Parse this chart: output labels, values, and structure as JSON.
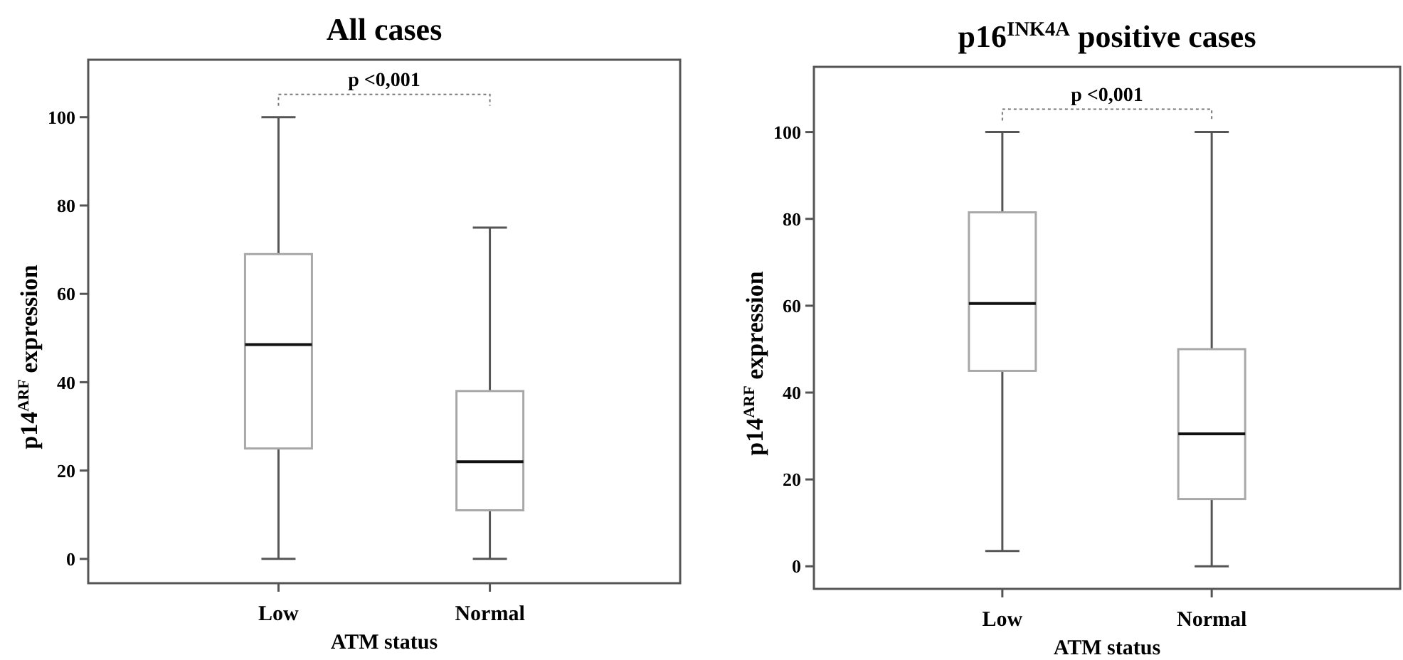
{
  "chart_data": [
    {
      "type": "box",
      "title": "All cases",
      "xlabel": "ATM status",
      "ylabel": "p14$^{ARF}$ expression",
      "categories": [
        "Low",
        "Normal"
      ],
      "color": "#a8a8a8",
      "boxes": [
        {
          "low": 0,
          "q1": 25,
          "median": 48.5,
          "q3": 69,
          "high": 100
        },
        {
          "low": 0,
          "q1": 11,
          "median": 22,
          "q3": 38,
          "high": 75
        }
      ],
      "ylim": [
        -5.5,
        113
      ],
      "yticks": [
        0,
        20,
        40,
        60,
        80,
        100
      ],
      "grid": false,
      "annotations": [
        "p <0,001"
      ]
    },
    {
      "type": "box",
      "title": "p16$^{INK4A}$ positive cases",
      "xlabel": "ATM status",
      "ylabel": "p14$^{ARF}$ expression",
      "categories": [
        "Low",
        "Normal"
      ],
      "color": "#a8a8a8",
      "boxes": [
        {
          "low": 3.5,
          "q1": 45,
          "median": 60.5,
          "q3": 81.5,
          "high": 100
        },
        {
          "low": 0,
          "q1": 15.5,
          "median": 30.5,
          "q3": 50,
          "high": 100
        }
      ],
      "ylim": [
        -5.2,
        115
      ],
      "yticks": [
        0,
        20,
        40,
        60,
        80,
        100
      ],
      "grid": false,
      "annotations": [
        "p <0,001"
      ]
    }
  ]
}
